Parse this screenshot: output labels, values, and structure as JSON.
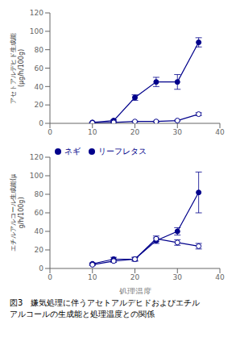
{
  "chart_data": [
    {
      "type": "line",
      "ylabel": "アセトアルデヒド生成能\n(μg/h/100g)",
      "xlim": [
        0,
        40
      ],
      "ylim": [
        0,
        120
      ],
      "xticks": [
        0,
        10,
        20,
        30,
        40
      ],
      "yticks": [
        0,
        20,
        40,
        60,
        80,
        100,
        120
      ],
      "grid": false,
      "series": [
        {
          "color": "#00008B",
          "marker": "filled_circle",
          "x": [
            10,
            15,
            20,
            25,
            30,
            35
          ],
          "values": [
            1,
            3,
            28,
            45,
            45,
            88
          ],
          "yerr": [
            0.5,
            1,
            3,
            5,
            8,
            5
          ]
        },
        {
          "color": "#00008B",
          "marker": "open_circle",
          "x": [
            10,
            15,
            20,
            25,
            30,
            35
          ],
          "values": [
            0.5,
            1,
            2,
            2,
            3,
            10
          ],
          "yerr": [
            0.2,
            0.3,
            0.5,
            0.5,
            0.5,
            1.5
          ]
        }
      ]
    },
    {
      "type": "line",
      "xlabel": "処理温度",
      "ylabel": "エチルアルコール生成能(μ\ng/h/100g)",
      "xlim": [
        0,
        40
      ],
      "ylim": [
        0,
        120
      ],
      "xticks": [
        0,
        10,
        20,
        30,
        40
      ],
      "yticks": [
        0,
        20,
        40,
        60,
        80,
        100,
        120
      ],
      "grid": false,
      "legend": "upper left",
      "series": [
        {
          "name": "リーフレタス",
          "color": "#00008B",
          "marker": "filled_circle",
          "x": [
            10,
            15,
            20,
            25,
            30,
            35
          ],
          "values": [
            5,
            10,
            10,
            30,
            40,
            82
          ],
          "yerr": [
            1,
            2,
            2,
            3,
            4,
            22
          ]
        },
        {
          "name": "ネギ",
          "color": "#00008B",
          "marker": "open_circle",
          "x": [
            10,
            15,
            20,
            25,
            30,
            35
          ],
          "values": [
            4,
            8,
            10,
            32,
            28,
            24
          ],
          "yerr": [
            1,
            1.5,
            2,
            3,
            3,
            3
          ]
        }
      ]
    }
  ],
  "caption": "図3　嫌気処理に伴うアセトアルデヒドおよびエチル\nアルコールの生成能と処理温度との関係"
}
